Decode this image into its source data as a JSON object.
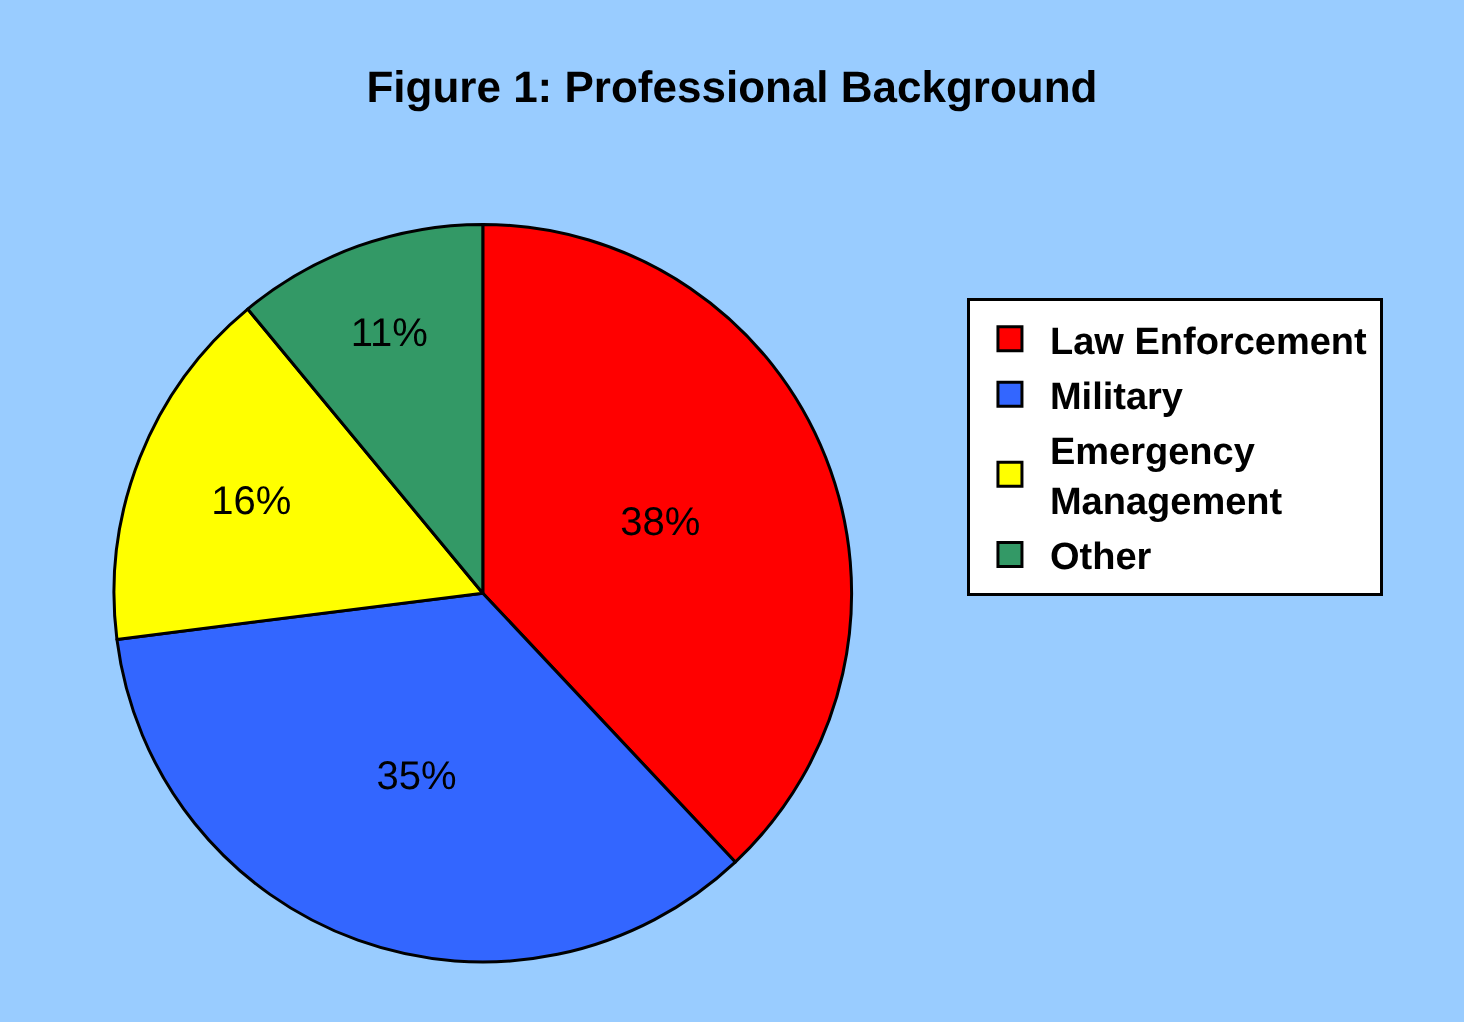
{
  "chart_data": {
    "type": "pie",
    "title": "Figure 1: Professional Background",
    "categories": [
      "Law Enforcement",
      "Military",
      "Emergency Management",
      "Other"
    ],
    "values": [
      38,
      35,
      16,
      11
    ],
    "colors": [
      "#ff0000",
      "#3366ff",
      "#ffff00",
      "#339966"
    ],
    "value_labels": [
      "38%",
      "35%",
      "16%",
      "11%"
    ],
    "legend": "right"
  }
}
